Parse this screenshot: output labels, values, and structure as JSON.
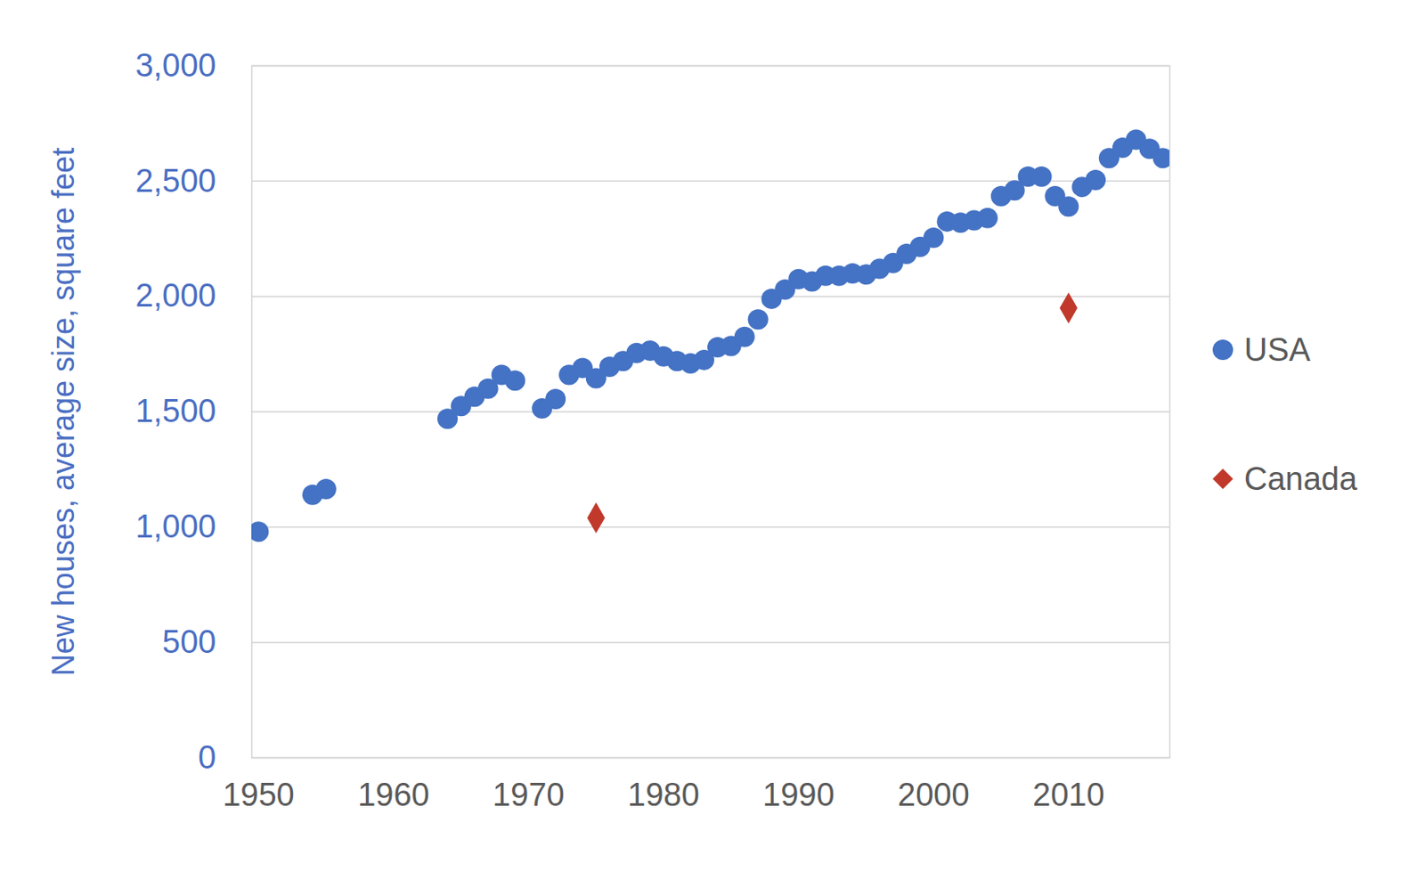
{
  "chart_data": {
    "type": "scatter",
    "y_label": "New houses, average size, square feet",
    "xlim": [
      1949.5,
      2017.5
    ],
    "xticks": [
      1950,
      1960,
      1970,
      1980,
      1990,
      2000,
      2010
    ],
    "ylim": [
      0,
      3000
    ],
    "yticks": [
      0,
      500,
      {
        "value": 1000,
        "label": "1,000"
      },
      {
        "value": 1500,
        "label": "1,500"
      },
      {
        "value": 2000,
        "label": "2,000"
      },
      {
        "value": 2500,
        "label": "2,500"
      },
      {
        "value": 3000,
        "label": "3,000"
      }
    ],
    "grid": true,
    "legend": "right",
    "series": [
      {
        "name": "USA",
        "color": "#4472c4",
        "marker": "circle",
        "x": [
          1950,
          1954,
          1955,
          1964,
          1965,
          1966,
          1967,
          1968,
          1969,
          1971,
          1972,
          1973,
          1974,
          1975,
          1976,
          1977,
          1978,
          1979,
          1980,
          1981,
          1982,
          1983,
          1984,
          1985,
          1986,
          1987,
          1988,
          1989,
          1990,
          1991,
          1992,
          1993,
          1994,
          1995,
          1996,
          1997,
          1998,
          1999,
          2000,
          2001,
          2002,
          2003,
          2004,
          2005,
          2006,
          2007,
          2008,
          2009,
          2010,
          2011,
          2012,
          2013,
          2014,
          2015,
          2016,
          2017
        ],
        "values": [
          980,
          1140,
          1165,
          1470,
          1525,
          1565,
          1600,
          1660,
          1635,
          1515,
          1555,
          1660,
          1690,
          1645,
          1695,
          1720,
          1755,
          1765,
          1740,
          1720,
          1710,
          1725,
          1780,
          1785,
          1825,
          1900,
          1990,
          2030,
          2075,
          2065,
          2090,
          2090,
          2100,
          2095,
          2120,
          2145,
          2185,
          2215,
          2255,
          2325,
          2320,
          2330,
          2340,
          2435,
          2460,
          2520,
          2520,
          2435,
          2390,
          2475,
          2505,
          2600,
          2645,
          2680,
          2640,
          2600
        ]
      },
      {
        "name": "Canada",
        "color": "#c0392b",
        "marker": "diamond",
        "x": [
          1975,
          2010
        ],
        "values": [
          1040,
          1950
        ]
      }
    ]
  }
}
